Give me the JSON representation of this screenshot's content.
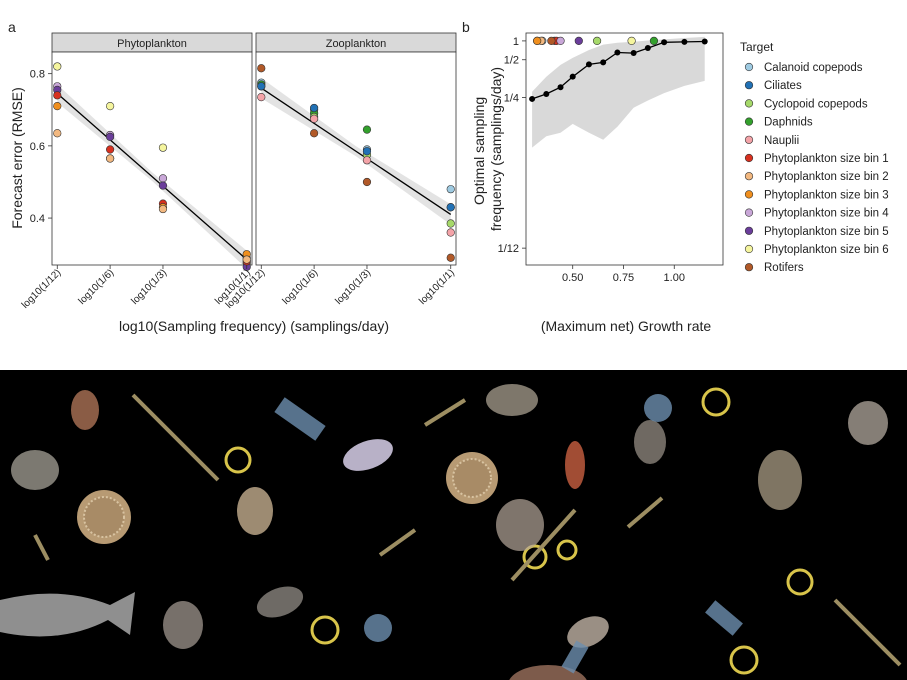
{
  "panel_labels": {
    "a": "a",
    "b": "b"
  },
  "chart_data": [
    {
      "type": "scatter",
      "panel": "a",
      "facets": [
        "Phytoplankton",
        "Zooplankton"
      ],
      "xlabel": "log10(Sampling frequency) (samplings/day)",
      "ylabel": "Forecast error (RMSE)",
      "x_ticks": [
        "log10(1/12)",
        "log10(1/6)",
        "log10(1/3)",
        "log10(1/1)"
      ],
      "x_values": [
        -1.0792,
        -0.7782,
        -0.4771,
        0.0
      ],
      "ylim": [
        0.27,
        0.86
      ],
      "y_ticks": [
        0.4,
        0.6,
        0.8
      ],
      "grid": false,
      "fit_line": {
        "Phytoplankton": [
          [
            -1.0792,
            0.745
          ],
          [
            0.0,
            0.285
          ]
        ],
        "Zooplankton": [
          [
            -1.0792,
            0.76
          ],
          [
            0.0,
            0.41
          ]
        ]
      },
      "band_halfwidth": {
        "Phytoplankton": [
          0.025,
          0.012,
          0.025
        ],
        "Zooplankton": [
          0.028,
          0.014,
          0.028
        ]
      },
      "points": {
        "Phytoplankton": [
          {
            "target": "Phytoplankton size bin 6",
            "values": [
              0.82,
              0.71,
              0.595,
              0.275
            ]
          },
          {
            "target": "Phytoplankton size bin 4",
            "values": [
              0.765,
              0.63,
              0.51,
              0.29
            ]
          },
          {
            "target": "Phytoplankton size bin 5",
            "values": [
              0.755,
              0.625,
              0.49,
              0.265
            ]
          },
          {
            "target": "Phytoplankton size bin 1",
            "values": [
              0.74,
              0.59,
              0.44,
              0.28
            ]
          },
          {
            "target": "Phytoplankton size bin 3",
            "values": [
              0.71,
              0.565,
              0.43,
              0.3
            ]
          },
          {
            "target": "Phytoplankton size bin 2",
            "values": [
              0.635,
              0.565,
              0.425,
              0.285
            ]
          }
        ],
        "Zooplankton": [
          {
            "target": "Rotifers",
            "values": [
              0.815,
              0.635,
              0.5,
              0.29
            ]
          },
          {
            "target": "Calanoid copepods",
            "values": [
              0.775,
              0.7,
              0.59,
              0.48
            ]
          },
          {
            "target": "Daphnids",
            "values": [
              0.77,
              0.69,
              0.645,
              0.43
            ]
          },
          {
            "target": "Cyclopoid copepods",
            "values": [
              0.765,
              0.68,
              0.575,
              0.385
            ]
          },
          {
            "target": "Ciliates",
            "values": [
              0.765,
              0.705,
              0.585,
              0.43
            ]
          },
          {
            "target": "Nauplii",
            "values": [
              0.735,
              0.675,
              0.56,
              0.36
            ]
          }
        ]
      }
    },
    {
      "type": "line",
      "panel": "b",
      "xlabel": "(Maximum net) Growth rate",
      "ylabel": "Optimal sampling frequency (samplings/day)",
      "x_ticks": [
        0.5,
        0.75,
        1.0
      ],
      "x_tick_labels": [
        "0.50",
        "0.75",
        "1.00"
      ],
      "xlim": [
        0.27,
        1.24
      ],
      "y_scale": "reciprocal",
      "y_ticks": [
        0.0833,
        0.25,
        0.5,
        1
      ],
      "y_tick_labels": [
        "1/12",
        "1/4",
        "1/2",
        "1"
      ],
      "grid": false,
      "line": {
        "x": [
          0.3,
          0.37,
          0.44,
          0.5,
          0.58,
          0.65,
          0.72,
          0.8,
          0.87,
          0.95,
          1.05,
          1.15
        ],
        "y": [
          0.245,
          0.262,
          0.289,
          0.345,
          0.445,
          0.467,
          0.62,
          0.608,
          0.725,
          0.932,
          0.952,
          0.97
        ]
      },
      "band": {
        "x": [
          0.3,
          0.37,
          0.44,
          0.5,
          0.58,
          0.65,
          0.72,
          0.8,
          0.87,
          0.95,
          1.05,
          1.15
        ],
        "lower": [
          0.15,
          0.165,
          0.17,
          0.185,
          0.17,
          0.16,
          0.18,
          0.22,
          0.24,
          0.265,
          0.295,
          0.32
        ],
        "upper": [
          0.27,
          0.345,
          0.44,
          0.525,
          0.675,
          0.835,
          0.915,
          0.955,
          1.02,
          1.09,
          1.18,
          1.27
        ]
      },
      "target_points": [
        {
          "target": "Calanoid copepods",
          "x": 0.35,
          "y": 1
        },
        {
          "target": "Ciliates",
          "x": 0.325,
          "y": 1
        },
        {
          "target": "Cyclopoid copepods",
          "x": 0.62,
          "y": 1
        },
        {
          "target": "Daphnids",
          "x": 0.9,
          "y": 1
        },
        {
          "target": "Nauplii",
          "x": 0.41,
          "y": 1
        },
        {
          "target": "Phytoplankton size bin 1",
          "x": 0.42,
          "y": 1
        },
        {
          "target": "Phytoplankton size bin 2",
          "x": 0.345,
          "y": 1
        },
        {
          "target": "Phytoplankton size bin 3",
          "x": 0.325,
          "y": 1
        },
        {
          "target": "Phytoplankton size bin 4",
          "x": 0.44,
          "y": 1
        },
        {
          "target": "Phytoplankton size bin 5",
          "x": 0.53,
          "y": 1
        },
        {
          "target": "Phytoplankton size bin 6",
          "x": 0.79,
          "y": 1
        },
        {
          "target": "Rotifers",
          "x": 0.395,
          "y": 1
        }
      ]
    }
  ],
  "legend": {
    "title": "Target",
    "placement": "right",
    "entries": [
      {
        "label": "Calanoid copepods",
        "color": "#9ecae1"
      },
      {
        "label": "Ciliates",
        "color": "#2171b5"
      },
      {
        "label": "Cyclopoid copepods",
        "color": "#a6d96a"
      },
      {
        "label": "Daphnids",
        "color": "#33a02c"
      },
      {
        "label": "Nauplii",
        "color": "#f4a3a8"
      },
      {
        "label": "Phytoplankton size bin 1",
        "color": "#d7301f"
      },
      {
        "label": "Phytoplankton size bin 2",
        "color": "#f2b880"
      },
      {
        "label": "Phytoplankton size bin 3",
        "color": "#f08f1e"
      },
      {
        "label": "Phytoplankton size bin 4",
        "color": "#c9a7d8"
      },
      {
        "label": "Phytoplankton size bin 5",
        "color": "#6a3d9a"
      },
      {
        "label": "Phytoplankton size bin 6",
        "color": "#f5f59e"
      },
      {
        "label": "Rotifers",
        "color": "#b15928"
      }
    ]
  }
}
